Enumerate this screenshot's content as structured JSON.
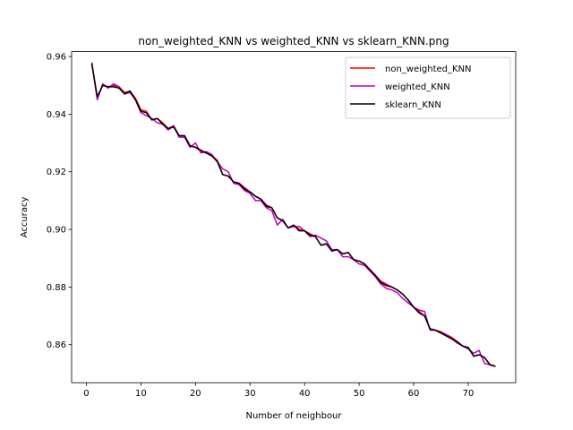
{
  "chart_data": {
    "type": "line",
    "title": "non_weighted_KNN vs weighted_KNN vs sklearn_KNN.png",
    "xlabel": "Number of neighbour",
    "ylabel": "Accuracy",
    "xlim": [
      -2.7,
      78.7
    ],
    "ylim": [
      0.8468,
      0.9617
    ],
    "xticks": [
      0,
      10,
      20,
      30,
      40,
      50,
      60,
      70
    ],
    "yticks": [
      0.86,
      0.88,
      0.9,
      0.92,
      0.94,
      0.96
    ],
    "ytick_labels": [
      "0.86",
      "0.88",
      "0.90",
      "0.92",
      "0.94",
      "0.96"
    ],
    "grid": false,
    "legend_position": "top-right",
    "x": [
      1,
      2,
      3,
      4,
      5,
      6,
      7,
      8,
      9,
      10,
      11,
      12,
      13,
      14,
      15,
      16,
      17,
      18,
      19,
      20,
      21,
      22,
      23,
      24,
      25,
      26,
      27,
      28,
      29,
      30,
      31,
      32,
      33,
      34,
      35,
      36,
      37,
      38,
      39,
      40,
      41,
      42,
      43,
      44,
      45,
      46,
      47,
      48,
      49,
      50,
      51,
      52,
      53,
      54,
      55,
      56,
      57,
      58,
      59,
      60,
      61,
      62,
      63,
      64,
      65,
      66,
      67,
      68,
      69,
      70,
      71,
      72,
      73,
      74,
      75
    ],
    "series": [
      {
        "name": "non_weighted_KNN",
        "color": "#ff0000",
        "values": [
          0.9575,
          0.9455,
          0.95,
          0.9495,
          0.95,
          0.9495,
          0.9475,
          0.948,
          0.9455,
          0.9415,
          0.941,
          0.938,
          0.9385,
          0.937,
          0.935,
          0.936,
          0.9325,
          0.9325,
          0.929,
          0.9285,
          0.927,
          0.9265,
          0.9255,
          0.924,
          0.919,
          0.9185,
          0.9165,
          0.916,
          0.9145,
          0.913,
          0.9115,
          0.9105,
          0.9085,
          0.9075,
          0.904,
          0.903,
          0.9005,
          0.9015,
          0.9,
          0.8995,
          0.8985,
          0.8975,
          0.8945,
          0.895,
          0.8925,
          0.893,
          0.8915,
          0.892,
          0.8895,
          0.889,
          0.888,
          0.886,
          0.884,
          0.882,
          0.881,
          0.88,
          0.879,
          0.8775,
          0.8755,
          0.873,
          0.8715,
          0.87,
          0.8655,
          0.865,
          0.8645,
          0.8635,
          0.8625,
          0.861,
          0.8595,
          0.859,
          0.856,
          0.8565,
          0.8555,
          0.853,
          0.8525
        ]
      },
      {
        "name": "weighted_KNN",
        "color": "#bf00bf",
        "values": [
          0.958,
          0.945,
          0.9505,
          0.949,
          0.9505,
          0.9495,
          0.947,
          0.9475,
          0.945,
          0.9405,
          0.9395,
          0.9385,
          0.937,
          0.9365,
          0.9345,
          0.936,
          0.932,
          0.932,
          0.9285,
          0.93,
          0.9265,
          0.927,
          0.926,
          0.9235,
          0.921,
          0.92,
          0.916,
          0.9155,
          0.9135,
          0.9125,
          0.91,
          0.91,
          0.9075,
          0.9065,
          0.9015,
          0.9035,
          0.9005,
          0.901,
          0.901,
          0.8995,
          0.8975,
          0.898,
          0.897,
          0.896,
          0.893,
          0.893,
          0.8905,
          0.8905,
          0.8895,
          0.888,
          0.8875,
          0.8855,
          0.8835,
          0.881,
          0.8795,
          0.879,
          0.878,
          0.876,
          0.8745,
          0.873,
          0.872,
          0.8715,
          0.865,
          0.865,
          0.864,
          0.8635,
          0.862,
          0.8605,
          0.8595,
          0.8585,
          0.857,
          0.858,
          0.8535,
          0.853,
          0.8525
        ]
      },
      {
        "name": "sklearn_KNN",
        "color": "#000000",
        "values": [
          0.9575,
          0.946,
          0.95,
          0.9495,
          0.9495,
          0.949,
          0.947,
          0.948,
          0.945,
          0.941,
          0.9405,
          0.938,
          0.9385,
          0.9365,
          0.935,
          0.9355,
          0.9325,
          0.9325,
          0.929,
          0.9285,
          0.9275,
          0.9265,
          0.9255,
          0.9235,
          0.919,
          0.9185,
          0.9165,
          0.916,
          0.914,
          0.913,
          0.9115,
          0.9105,
          0.908,
          0.9075,
          0.904,
          0.903,
          0.9005,
          0.9015,
          0.8995,
          0.8995,
          0.898,
          0.8975,
          0.8945,
          0.895,
          0.8925,
          0.893,
          0.8915,
          0.892,
          0.8895,
          0.889,
          0.888,
          0.886,
          0.884,
          0.8815,
          0.8805,
          0.88,
          0.879,
          0.8775,
          0.8755,
          0.873,
          0.871,
          0.87,
          0.8655,
          0.865,
          0.864,
          0.863,
          0.862,
          0.861,
          0.8595,
          0.859,
          0.856,
          0.8565,
          0.8555,
          0.853,
          0.8525
        ]
      }
    ]
  }
}
